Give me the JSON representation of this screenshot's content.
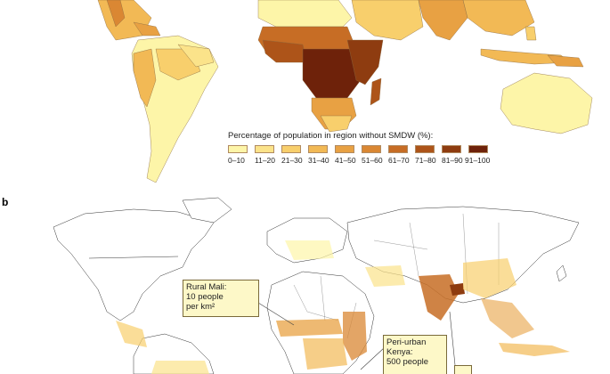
{
  "panel_a": {
    "label": "",
    "legend": {
      "title": "Percentage of population in region without SMDW (%):",
      "items": [
        {
          "label": "0–10",
          "color": "#fdf5a8"
        },
        {
          "label": "11–20",
          "color": "#fbe38a"
        },
        {
          "label": "21–30",
          "color": "#f8cf6c"
        },
        {
          "label": "31–40",
          "color": "#f2b955"
        },
        {
          "label": "41–50",
          "color": "#e8a143"
        },
        {
          "label": "51–60",
          "color": "#da8733"
        },
        {
          "label": "61–70",
          "color": "#c76d25"
        },
        {
          "label": "71–80",
          "color": "#ad5419"
        },
        {
          "label": "81–90",
          "color": "#8e3c10"
        },
        {
          "label": "91–100",
          "color": "#6e220a"
        }
      ]
    }
  },
  "panel_b": {
    "label": "b",
    "callouts": [
      {
        "id": "rural-mali",
        "lines": [
          "Rural Mali:",
          "10 people",
          "per km²"
        ]
      },
      {
        "id": "peri-urban-kenya",
        "lines": [
          "Peri-urban",
          "Kenya:",
          "500 people"
        ]
      }
    ]
  }
}
